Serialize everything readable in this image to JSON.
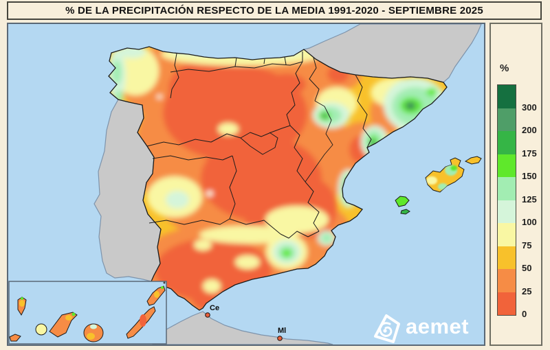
{
  "title": "% DE LA PRECIPITACIÓN RESPECTO DE LA MEDIA 1991-2020 - SEPTIEMBRE 2025",
  "legend": {
    "unit_label": "%",
    "bands": [
      {
        "color": "#157040",
        "label": "300"
      },
      {
        "color": "#4f9e68",
        "label": "200"
      },
      {
        "color": "#35b546",
        "label": "175"
      },
      {
        "color": "#5fe82b",
        "label": "150"
      },
      {
        "color": "#a2edb2",
        "label": "125"
      },
      {
        "color": "#d5f5da",
        "label": "100"
      },
      {
        "color": "#f9f7a3",
        "label": "75"
      },
      {
        "color": "#f8c12b",
        "label": "50"
      },
      {
        "color": "#f68c45",
        "label": "25"
      },
      {
        "color": "#f1633a",
        "label": "0"
      }
    ]
  },
  "map": {
    "city_labels": {
      "ceuta": "Ce",
      "melilla": "Ml"
    },
    "logo_text": "aemet",
    "colors": {
      "sea": "#b4d8f2",
      "land_outside_spain": "#c9c9c9",
      "coast_outside_stroke": "#7d93ab",
      "spain_outline": "#1a1a1a",
      "background": "#f6eedb"
    }
  }
}
